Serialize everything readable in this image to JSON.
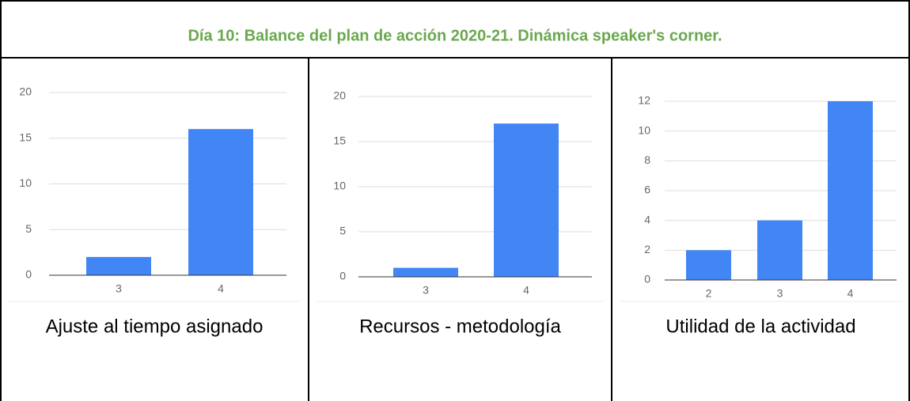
{
  "title": "Día 10: Balance del plan de acción 2020-21. Dinámica speaker's corner.",
  "chart_data": [
    {
      "type": "bar",
      "title": "Ajuste al tiempo asignado",
      "categories": [
        "3",
        "4"
      ],
      "values": [
        2,
        16
      ],
      "color": "#4285f4",
      "ylim": [
        0,
        20
      ],
      "yticks": [
        0,
        5,
        10,
        15,
        20
      ],
      "grid": true
    },
    {
      "type": "bar",
      "title": "Recursos - metodología",
      "categories": [
        "3",
        "4"
      ],
      "values": [
        1,
        17
      ],
      "color": "#4285f4",
      "ylim": [
        0,
        20
      ],
      "yticks": [
        0,
        5,
        10,
        15,
        20
      ],
      "grid": true
    },
    {
      "type": "bar",
      "title": "Utilidad de la actividad",
      "categories": [
        "2",
        "3",
        "4"
      ],
      "values": [
        2,
        4,
        12
      ],
      "color": "#4285f4",
      "ylim": [
        0,
        12
      ],
      "yticks": [
        0,
        2,
        4,
        6,
        8,
        10,
        12
      ],
      "grid": true
    }
  ]
}
